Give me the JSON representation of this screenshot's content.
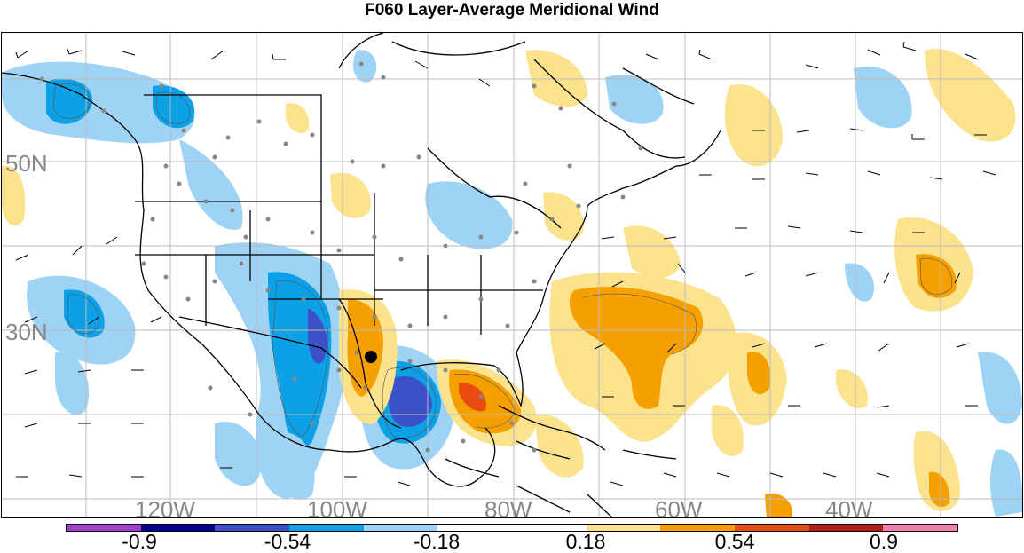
{
  "title": "F060 Layer-Average Meridional Wind",
  "map": {
    "lat_labels": [
      "50N",
      "30N"
    ],
    "lon_labels": [
      "120W",
      "100W",
      "80W",
      "60W",
      "40W"
    ],
    "storm_marker": "storm-center-dot",
    "colors": {
      "land_outline": "#000000",
      "graticule": "#bbbbbb",
      "station_dot": "#888888"
    }
  },
  "colorbar": {
    "labels": [
      "-0.9",
      "-0.54",
      "-0.18",
      "0.18",
      "0.54",
      "0.9"
    ],
    "colors": [
      "#a040c8",
      "#00008b",
      "#3c50c8",
      "#0ca0e6",
      "#9fd3f5",
      "#ffffff",
      "#ffffff",
      "#fbe28c",
      "#f5a000",
      "#e84a10",
      "#b41e1e",
      "#f080b4"
    ]
  }
}
